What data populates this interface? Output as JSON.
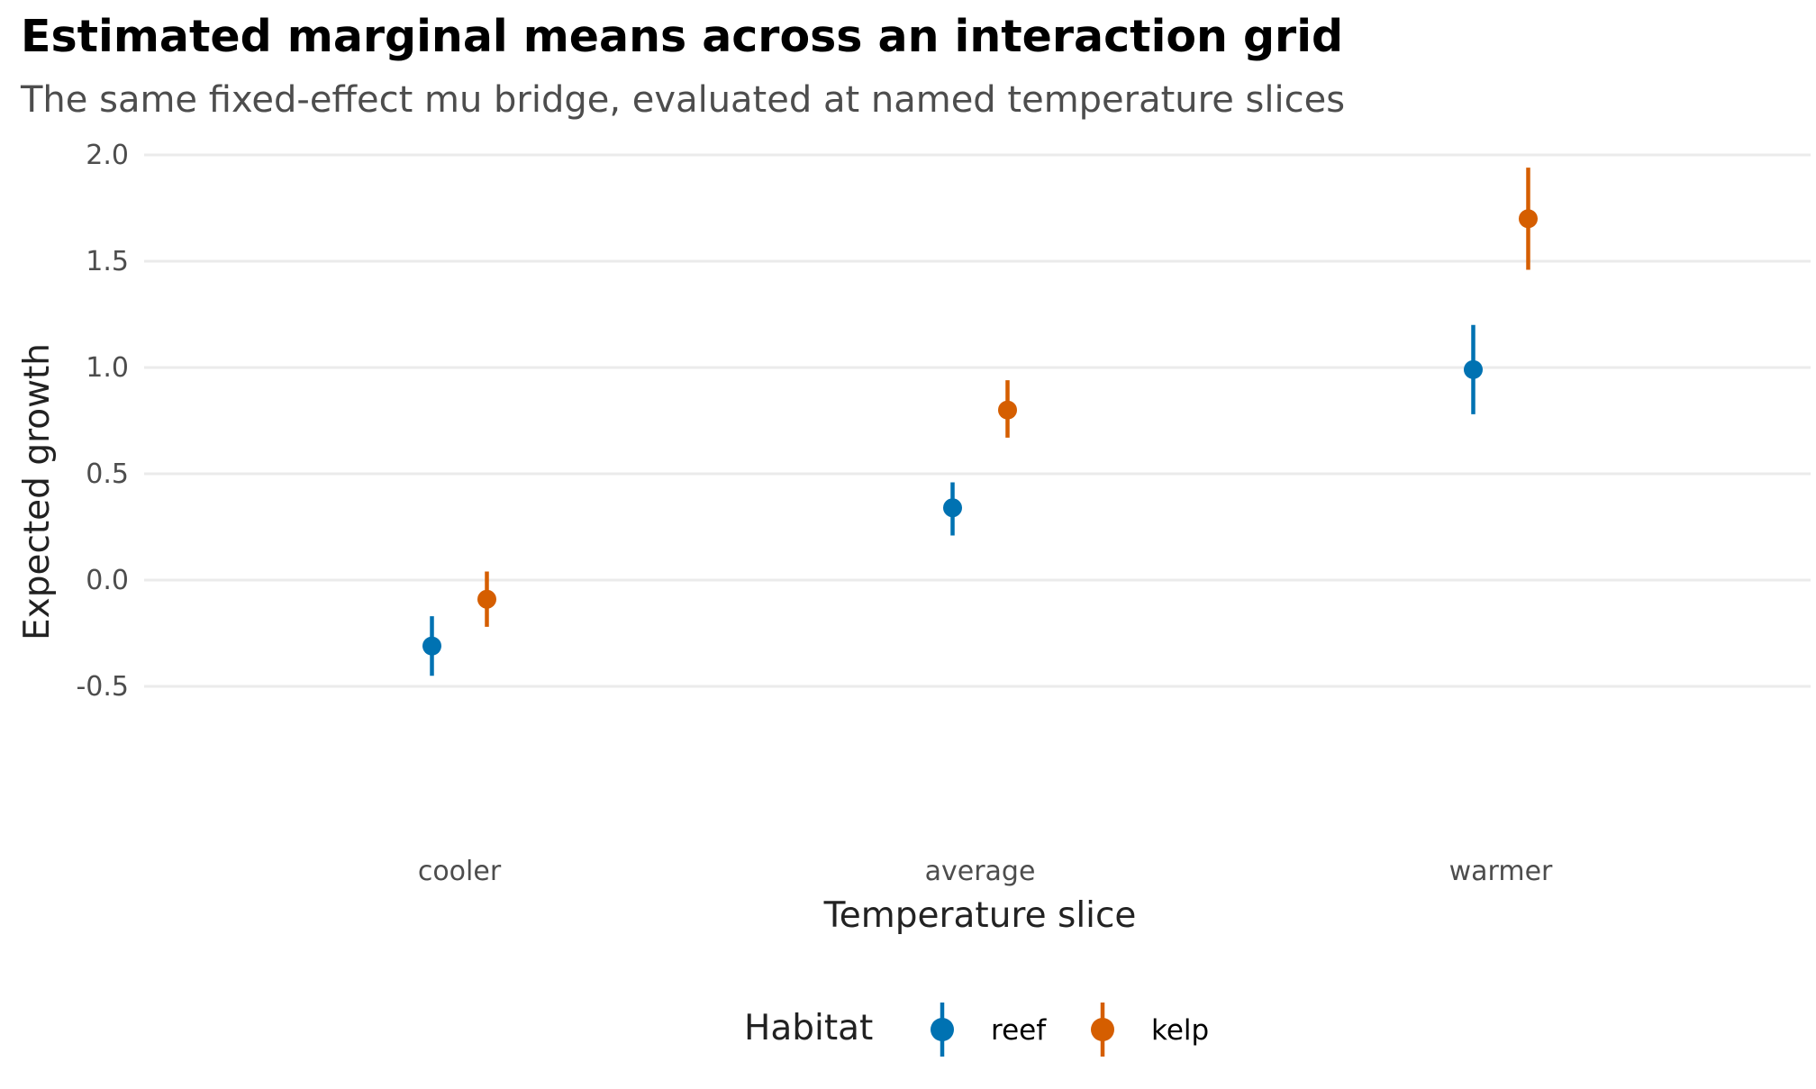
{
  "chart_data": {
    "type": "scatter",
    "title": "Estimated marginal means across an interaction grid",
    "subtitle": "The same fixed-effect mu bridge, evaluated at named temperature slices",
    "xlabel": "Temperature slice",
    "ylabel": "Expected growth",
    "categories": [
      "cooler",
      "average",
      "warmer"
    ],
    "ylim": [
      -0.5,
      2.0
    ],
    "yticks": [
      -0.5,
      0.0,
      0.5,
      1.0,
      1.5,
      2.0
    ],
    "ytick_labels": [
      "-0.5",
      "0.0",
      "0.5",
      "1.0",
      "1.5",
      "2.0"
    ],
    "grid": true,
    "legend": {
      "title": "Habitat",
      "position": "bottom"
    },
    "series": [
      {
        "name": "reef",
        "color": "#0072B2",
        "values": [
          -0.31,
          0.34,
          0.99
        ],
        "lower": [
          -0.45,
          0.21,
          0.78
        ],
        "upper": [
          -0.17,
          0.46,
          1.2
        ]
      },
      {
        "name": "kelp",
        "color": "#D55E00",
        "values": [
          -0.09,
          0.8,
          1.7
        ],
        "lower": [
          -0.22,
          0.67,
          1.46
        ],
        "upper": [
          0.04,
          0.94,
          1.94
        ]
      }
    ]
  }
}
